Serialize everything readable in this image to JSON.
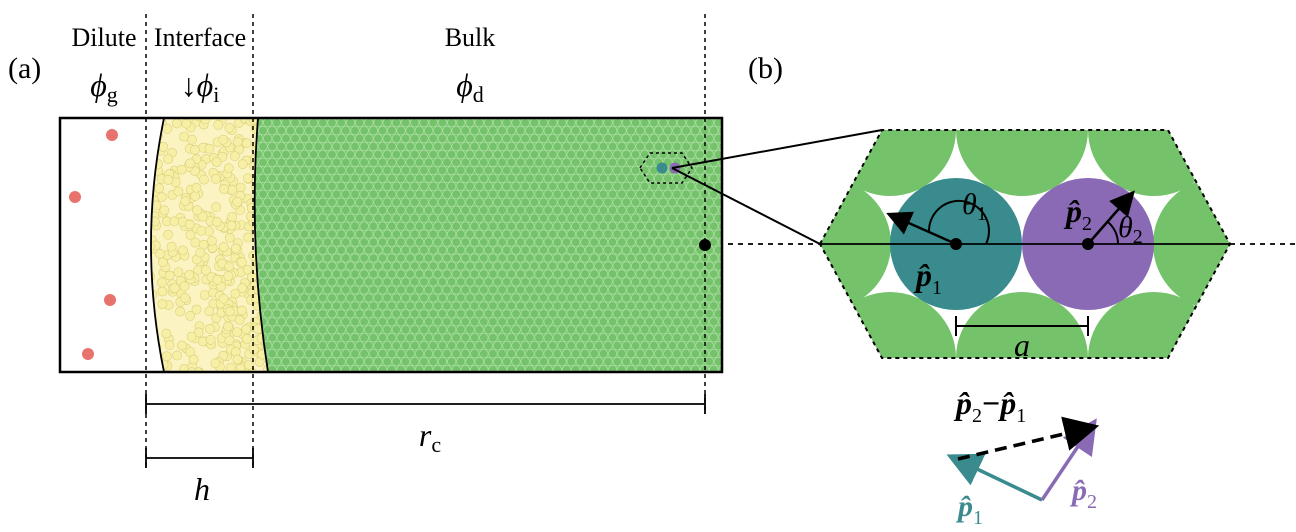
{
  "panel_a": {
    "label": "(a)",
    "regions": {
      "dilute": {
        "name": "Dilute",
        "symbol": "ϕ",
        "subscript": "g"
      },
      "interface": {
        "name": "Interface",
        "arrow": "↓",
        "symbol": "ϕ",
        "subscript": "i"
      },
      "bulk": {
        "name": "Bulk",
        "symbol": "ϕ",
        "subscript": "d"
      }
    },
    "dim_h": "h",
    "dim_rc": {
      "symbol": "r",
      "subscript": "c"
    }
  },
  "panel_b": {
    "label": "(b)",
    "theta1": {
      "symbol": "θ",
      "subscript": "1"
    },
    "theta2": {
      "symbol": "θ",
      "subscript": "2"
    },
    "p1": {
      "symbol": "p̂",
      "subscript": "1"
    },
    "p2": {
      "symbol": "p̂",
      "subscript": "2"
    },
    "distance": "a",
    "vector_diff": {
      "first": "p̂",
      "first_sub": "2",
      "minus": "−",
      "second": "p̂",
      "second_sub": "1"
    },
    "vec_p1": {
      "symbol": "p̂",
      "subscript": "1"
    },
    "vec_p2": {
      "symbol": "p̂",
      "subscript": "2"
    }
  },
  "colors": {
    "gas": "#e8736c",
    "interface": "#f7efa6",
    "bulk": "#74c26a",
    "teal": "#3a8b8d",
    "purple": "#8a6ab5",
    "line": "#000000"
  }
}
